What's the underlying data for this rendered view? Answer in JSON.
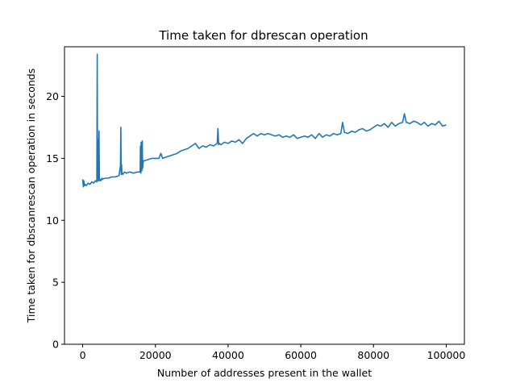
{
  "chart_data": {
    "type": "line",
    "title": "Time taken for dbrescan operation",
    "xlabel": "Number of addresses present in the wallet",
    "ylabel": "Time taken for dbscanrescan operation in seconds",
    "xlim": [
      -5000,
      105000
    ],
    "ylim": [
      0,
      24
    ],
    "xticks": [
      0,
      20000,
      40000,
      60000,
      80000,
      100000
    ],
    "yticks": [
      0,
      5,
      10,
      15,
      20
    ],
    "grid": false,
    "legend": "none",
    "line_color": "#1f77b4",
    "series": [
      {
        "x": [
          0,
          200,
          300,
          500,
          700,
          1000,
          1500,
          2000,
          2500,
          3000,
          3500,
          3900,
          4000,
          4100,
          4200,
          4300,
          4400,
          4500,
          4600,
          4800,
          5000,
          5200,
          5300,
          5500,
          6000,
          7000,
          8000,
          9000,
          10000,
          10400,
          10500,
          10600,
          10700,
          10800,
          11000,
          11500,
          12000,
          13000,
          14000,
          15000,
          15800,
          15900,
          16000,
          16100,
          16300,
          16400,
          16500,
          16700,
          17000,
          18000,
          19000,
          20000,
          21000,
          21500,
          22000,
          23000,
          24000,
          25000,
          26000,
          27000,
          28000,
          29000,
          30000,
          31000,
          32000,
          33000,
          34000,
          35000,
          36000,
          37000,
          37200,
          37400,
          37600,
          38000,
          39000,
          40000,
          41000,
          42000,
          43000,
          44000,
          45000,
          46000,
          47000,
          48000,
          49000,
          50000,
          51000,
          52000,
          53000,
          54000,
          55000,
          56000,
          57000,
          58000,
          59000,
          60000,
          61000,
          62000,
          63000,
          64000,
          65000,
          66000,
          67000,
          68000,
          69000,
          70000,
          71000,
          71500,
          72000,
          73000,
          74000,
          75000,
          76000,
          77000,
          78000,
          79000,
          80000,
          81000,
          82000,
          83000,
          84000,
          85000,
          86000,
          87000,
          88000,
          88500,
          89000,
          90000,
          91000,
          92000,
          93000,
          94000,
          95000,
          96000,
          97000,
          98000,
          99000,
          100000
        ],
        "y": [
          13.3,
          12.7,
          13.2,
          12.8,
          12.9,
          12.8,
          13.0,
          12.9,
          13.1,
          13.0,
          13.2,
          13.1,
          23.4,
          13.2,
          16.5,
          13.3,
          13.2,
          17.2,
          13.2,
          13.3,
          13.2,
          13.3,
          13.4,
          13.3,
          13.4,
          13.4,
          13.5,
          13.5,
          13.6,
          14.4,
          17.5,
          13.7,
          14.5,
          13.8,
          13.7,
          13.9,
          13.8,
          13.9,
          13.8,
          13.9,
          13.9,
          16.0,
          13.8,
          16.3,
          14.0,
          16.4,
          14.2,
          14.8,
          14.8,
          14.9,
          15.0,
          15.0,
          15.0,
          15.4,
          15.0,
          15.1,
          15.2,
          15.3,
          15.4,
          15.6,
          15.7,
          15.8,
          16.0,
          16.2,
          15.8,
          16.0,
          15.9,
          16.1,
          16.0,
          16.2,
          17.4,
          16.1,
          16.2,
          16.1,
          16.3,
          16.2,
          16.4,
          16.3,
          16.5,
          16.2,
          16.6,
          16.8,
          17.0,
          16.8,
          17.0,
          16.9,
          17.0,
          16.9,
          16.8,
          16.9,
          16.7,
          16.8,
          16.7,
          16.9,
          16.6,
          16.7,
          16.8,
          16.7,
          16.9,
          16.6,
          17.0,
          16.7,
          16.9,
          16.8,
          17.0,
          16.9,
          17.0,
          17.9,
          17.1,
          17.0,
          17.2,
          17.1,
          17.3,
          17.4,
          17.2,
          17.3,
          17.5,
          17.7,
          17.6,
          17.8,
          17.5,
          17.9,
          17.6,
          17.8,
          17.9,
          18.6,
          17.9,
          17.8,
          18.0,
          17.9,
          17.7,
          17.9,
          17.6,
          17.8,
          17.7,
          18.0,
          17.6,
          17.7
        ]
      }
    ]
  }
}
